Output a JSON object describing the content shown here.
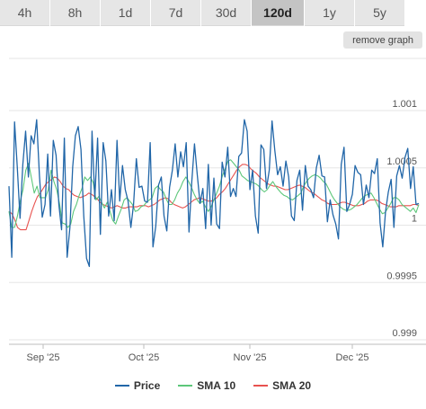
{
  "tabs": [
    {
      "label": "4h",
      "active": false
    },
    {
      "label": "8h",
      "active": false
    },
    {
      "label": "1d",
      "active": false
    },
    {
      "label": "7d",
      "active": false
    },
    {
      "label": "30d",
      "active": false
    },
    {
      "label": "120d",
      "active": true
    },
    {
      "label": "1y",
      "active": false
    },
    {
      "label": "5y",
      "active": false
    }
  ],
  "remove_graph_label": "remove graph",
  "legend": [
    {
      "label": "Price",
      "color": "#2166a8"
    },
    {
      "label": "SMA 10",
      "color": "#5cc77a"
    },
    {
      "label": "SMA 20",
      "color": "#e8524f"
    }
  ],
  "chart_data": {
    "type": "line",
    "xlabel": "",
    "ylabel": "",
    "x_ticks": [
      "Sep '25",
      "Oct '25",
      "Nov '25",
      "Dec '25"
    ],
    "y_ticks": [
      "1.001",
      "1.0005",
      "1",
      "0.9995",
      "0.999"
    ],
    "ylim": [
      0.999,
      1.001
    ],
    "grid": true,
    "legend_position": "bottom",
    "series": [
      {
        "name": "Price",
        "color": "#2166a8",
        "values": [
          1.00034,
          0.99972,
          1.0009,
          1.00051,
          1.00006,
          1.00053,
          1.00082,
          1.00042,
          1.00078,
          1.00071,
          1.00092,
          1.00043,
          1.00007,
          1.00018,
          1.00062,
          1.00008,
          1.00074,
          1.00061,
          1.00018,
          0.99996,
          1.00076,
          0.99972,
          0.99998,
          1.00051,
          1.00078,
          1.00086,
          1.00066,
          1.00008,
          0.99971,
          0.99964,
          1.00082,
          1.00023,
          1.00076,
          0.99992,
          1.00072,
          1.00056,
          1.00008,
          1.00031,
          1.00004,
          1.00074,
          1.00021,
          1.00052,
          1.00031,
          1.00021,
          0.99998,
          1.00018,
          1.00058,
          1.00033,
          1.00034,
          1.00021,
          1.0002,
          1.00072,
          0.99981,
          0.99999,
          1.00035,
          1.00042,
          1.00008,
          0.99995,
          1.00033,
          1.00048,
          1.00071,
          1.00042,
          1.00064,
          1.00051,
          1.00072,
          0.99994,
          1.00038,
          1.00071,
          1.00044,
          1.00019,
          1.00032,
          0.99997,
          1.00053,
          1.0,
          1.00041,
          1.00001,
          0.99997,
          1.00055,
          1.00042,
          1.00068,
          1.00025,
          1.00032,
          1.00025,
          1.0006,
          1.00063,
          1.00092,
          1.00082,
          1.00031,
          1.00048,
          1.00008,
          0.99993,
          1.0007,
          1.00066,
          1.00032,
          1.00048,
          1.00091,
          1.00065,
          1.00044,
          1.00051,
          1.00034,
          1.00056,
          1.00042,
          1.00008,
          1.00004,
          1.00039,
          1.00048,
          1.00013,
          1.00052,
          1.00034,
          1.00031,
          1.00024,
          1.0005,
          1.00061,
          1.00043,
          1.00042,
          1.00003,
          1.00022,
          1.00009,
          1.00001,
          0.99988,
          1.00053,
          1.00068,
          1.00012,
          1.00018,
          1.00027,
          1.00052,
          1.00046,
          1.00044,
          1.00018,
          1.00035,
          1.00024,
          1.00048,
          1.00045,
          1.00058,
          1.00002,
          0.99981,
          1.00012,
          1.00029,
          1.0004,
          0.99998,
          1.00043,
          1.00052,
          1.00041,
          1.00059,
          1.00067,
          1.00032,
          1.00051,
          1.00018,
          1.00019
        ]
      },
      {
        "name": "SMA 10",
        "color": "#5cc77a",
        "values": [
          1.00012,
          0.99998,
          0.99998,
          1.00008,
          1.00021,
          1.00031,
          1.00048,
          1.00054,
          1.00041,
          1.00028,
          1.00034,
          1.00024,
          1.00024,
          1.00024,
          1.00031,
          1.00048,
          1.00038,
          1.00031,
          1.00019,
          1.00002,
          1.00001,
          0.99998,
          1.00001,
          1.00012,
          1.00018,
          1.00026,
          1.00032,
          1.00042,
          1.00039,
          1.00042,
          1.00037,
          1.00022,
          1.00025,
          1.0002,
          1.00015,
          1.0002,
          1.00012,
          1.00004,
          1.00001,
          1.00008,
          1.00014,
          1.00022,
          1.00024,
          1.00021,
          1.00018,
          1.00012,
          1.00013,
          1.00016,
          1.00017,
          1.0002,
          1.00022,
          1.00024,
          1.00032,
          1.00034,
          1.00031,
          1.00029,
          1.00023,
          1.00018,
          1.00018,
          1.00022,
          1.00028,
          1.00032,
          1.00038,
          1.00042,
          1.00038,
          1.00033,
          1.00027,
          1.00022,
          1.00019,
          1.00021,
          1.00016,
          1.00012,
          1.00016,
          1.00022,
          1.00028,
          1.00034,
          1.00043,
          1.00049,
          1.00056,
          1.00057,
          1.00054,
          1.00051,
          1.00048,
          1.00043,
          1.00041,
          1.00039,
          1.00038,
          1.00037,
          1.00036,
          1.00034,
          1.00031,
          1.00029,
          1.00031,
          1.00035,
          1.00038,
          1.00034,
          1.00031,
          1.00028,
          1.00026,
          1.00025,
          1.00023,
          1.00022,
          1.00024,
          1.00026,
          1.00028,
          1.00034,
          1.00038,
          1.00041,
          1.00043,
          1.00044,
          1.00043,
          1.00041,
          1.00038,
          1.00036,
          1.00031,
          1.00026,
          1.00022,
          1.00019,
          1.00016,
          1.00014,
          1.00013,
          1.00013,
          1.00014,
          1.00016,
          1.00018,
          1.00021,
          1.00024,
          1.00026,
          1.00027,
          1.00028,
          1.00024,
          1.00019,
          1.00014,
          1.0001,
          1.00011,
          1.00015,
          1.00019,
          1.00024,
          1.00024,
          1.00022,
          1.00018,
          1.00016,
          1.00014,
          1.00012,
          1.00015,
          1.00011,
          1.00018
        ]
      },
      {
        "name": "SMA 20",
        "color": "#e8524f",
        "values": [
          1.00012,
          1.0001,
          1.00005,
          0.99998,
          0.99996,
          0.99996,
          0.99996,
          1.00004,
          1.00012,
          1.00019,
          1.00025,
          1.00028,
          1.00032,
          1.00036,
          1.00038,
          1.0004,
          1.00042,
          1.00041,
          1.00038,
          1.00034,
          1.00032,
          1.00031,
          1.00028,
          1.00026,
          1.00025,
          1.00024,
          1.00025,
          1.00026,
          1.00028,
          1.00027,
          1.00025,
          1.00023,
          1.0002,
          1.00018,
          1.00017,
          1.00016,
          1.00015,
          1.00016,
          1.00017,
          1.00016,
          1.00015,
          1.00015,
          1.00016,
          1.00016,
          1.00016,
          1.00016,
          1.00017,
          1.00017,
          1.00017,
          1.00016,
          1.00017,
          1.00018,
          1.0002,
          1.00022,
          1.00023,
          1.00024,
          1.00023,
          1.0002,
          1.00018,
          1.00017,
          1.00016,
          1.00015,
          1.00016,
          1.00018,
          1.0002,
          1.00022,
          1.00023,
          1.00024,
          1.00023,
          1.00022,
          1.00021,
          1.00021,
          1.00022,
          1.00024,
          1.00027,
          1.00029,
          1.00032,
          1.00036,
          1.0004,
          1.00044,
          1.00048,
          1.00051,
          1.00053,
          1.00053,
          1.00052,
          1.00049,
          1.00047,
          1.00045,
          1.00042,
          1.0004,
          1.00038,
          1.00036,
          1.00035,
          1.00034,
          1.00034,
          1.00033,
          1.00032,
          1.00031,
          1.00031,
          1.00032,
          1.00033,
          1.00034,
          1.00035,
          1.00034,
          1.00033,
          1.00031,
          1.00029,
          1.00028,
          1.00026,
          1.00024,
          1.00022,
          1.00021,
          1.00019,
          1.00018,
          1.00018,
          1.00018,
          1.00019,
          1.0002,
          1.0002,
          1.00019,
          1.00018,
          1.00017,
          1.00017,
          1.00017,
          1.00018,
          1.00019,
          1.00021,
          1.00022,
          1.00022,
          1.00022,
          1.00021,
          1.00019,
          1.00018,
          1.00017,
          1.00016,
          1.00016,
          1.00016,
          1.00017,
          1.00017,
          1.00017,
          1.00017,
          1.00017,
          1.00018,
          1.00018,
          1.00017
        ]
      }
    ]
  }
}
